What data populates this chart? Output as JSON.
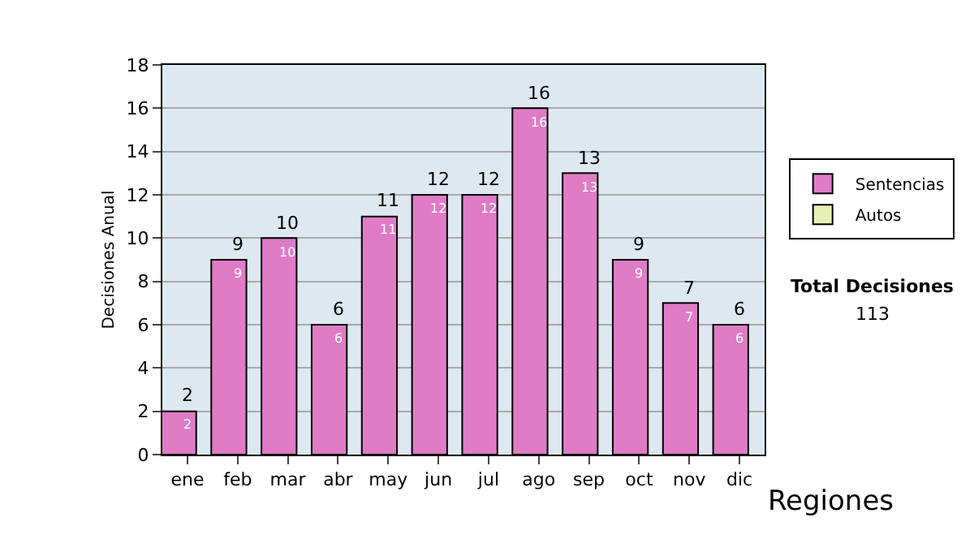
{
  "chart_data": {
    "type": "bar",
    "ylabel": "Decisiones Anual",
    "categories": [
      "ene",
      "feb",
      "mar",
      "abr",
      "may",
      "jun",
      "jul",
      "ago",
      "sep",
      "oct",
      "nov",
      "dic"
    ],
    "series": [
      {
        "name": "Sentencias",
        "color": "#e07cc6",
        "values": [
          2,
          9,
          10,
          6,
          11,
          12,
          12,
          16,
          13,
          9,
          7,
          6
        ],
        "value_labels": [
          "2",
          "9",
          "10",
          "6",
          "11",
          "12",
          "12",
          "16",
          "13",
          "9",
          "7",
          "6"
        ]
      },
      {
        "name": "Autos",
        "color": "#e6f0b4",
        "values": [
          null,
          null,
          null,
          null,
          null,
          null,
          null,
          null,
          null,
          null,
          null,
          null
        ]
      }
    ],
    "ylim": [
      0,
      18
    ],
    "yticks": [
      0,
      2,
      4,
      6,
      8,
      10,
      12,
      14,
      16,
      18
    ],
    "grid": "y",
    "legend": "right",
    "annotations": [
      "Total Decisiones",
      "113",
      "Regiones"
    ]
  }
}
